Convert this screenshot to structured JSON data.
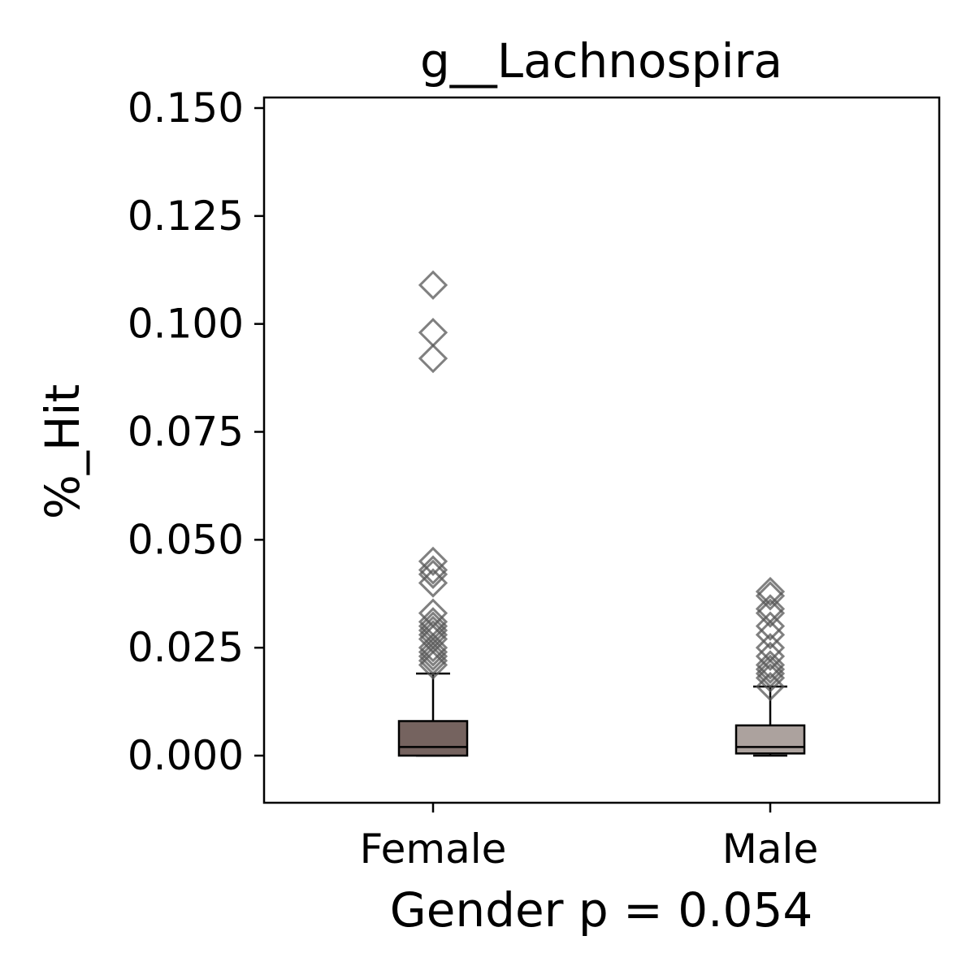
{
  "chart_data": {
    "type": "boxplot",
    "title": "g__Lachnospira",
    "xlabel": "Gender p = 0.054",
    "ylabel": "%_Hit",
    "ylim": [
      -0.011,
      0.152
    ],
    "yticks": [
      0.0,
      0.025,
      0.05,
      0.075,
      0.1,
      0.125,
      0.15
    ],
    "ytick_labels": [
      "0.000",
      "0.025",
      "0.050",
      "0.075",
      "0.100",
      "0.125",
      "0.150"
    ],
    "categories": [
      "Female",
      "Male"
    ],
    "grid": false,
    "series": [
      {
        "category": "Female",
        "color": "#75635f",
        "whisker_low": 0.0,
        "q1": 0.0,
        "median": 0.002,
        "q3": 0.008,
        "whisker_high": 0.019,
        "outliers": [
          0.109,
          0.098,
          0.092,
          0.045,
          0.043,
          0.042,
          0.04,
          0.033,
          0.031,
          0.03,
          0.029,
          0.028,
          0.027,
          0.025,
          0.024,
          0.023,
          0.022,
          0.021
        ]
      },
      {
        "category": "Male",
        "color": "#aca29e",
        "whisker_low": 0.0,
        "q1": 0.0005,
        "median": 0.002,
        "q3": 0.007,
        "whisker_high": 0.016,
        "outliers": [
          0.038,
          0.037,
          0.034,
          0.033,
          0.03,
          0.028,
          0.025,
          0.023,
          0.021,
          0.02,
          0.019,
          0.018,
          0.016
        ]
      }
    ],
    "outlier_marker": "diamond",
    "outlier_color": "#555555"
  }
}
